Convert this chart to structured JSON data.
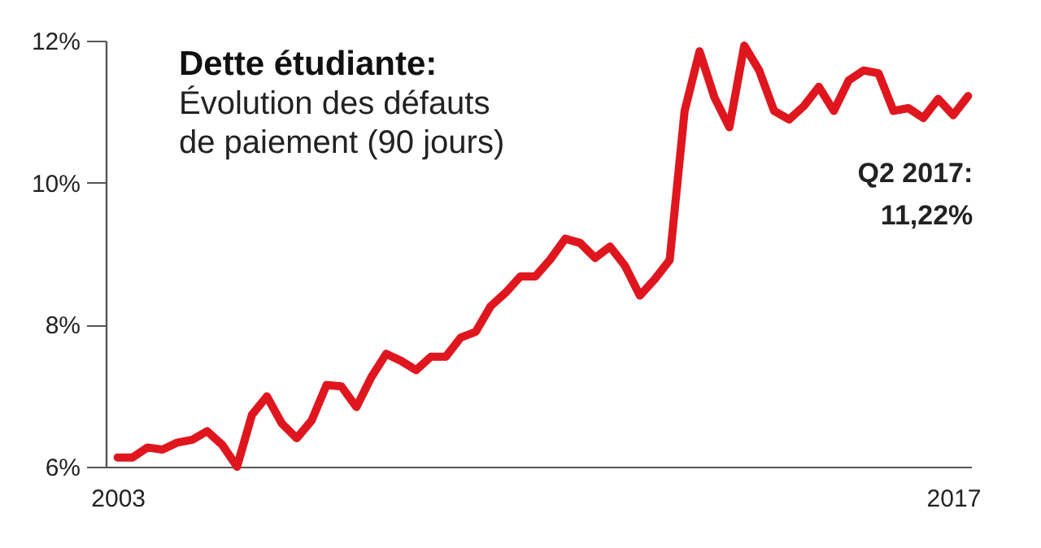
{
  "chart_data": {
    "type": "line",
    "title": "Dette étudiante:",
    "subtitle": "Évolution des défauts de paiement (90 jours)",
    "x": [
      2003,
      2003.25,
      2003.5,
      2003.75,
      2004,
      2004.25,
      2004.5,
      2004.75,
      2005,
      2005.25,
      2005.5,
      2005.75,
      2006,
      2006.25,
      2006.5,
      2006.75,
      2007,
      2007.25,
      2007.5,
      2007.75,
      2008,
      2008.25,
      2008.5,
      2008.75,
      2009,
      2009.25,
      2009.5,
      2009.75,
      2010,
      2010.25,
      2010.5,
      2010.75,
      2011,
      2011.25,
      2011.5,
      2011.75,
      2012,
      2012.25,
      2012.5,
      2012.75,
      2013,
      2013.25,
      2013.5,
      2013.75,
      2014,
      2014.25,
      2014.5,
      2014.75,
      2015,
      2015.25,
      2015.5,
      2015.75,
      2016,
      2016.25,
      2016.5,
      2016.75,
      2017,
      2017.25
    ],
    "series": [
      {
        "color": "#e0161e",
        "values": [
          6.13,
          6.13,
          6.27,
          6.24,
          6.34,
          6.38,
          6.5,
          6.31,
          6.0,
          6.73,
          6.99,
          6.61,
          6.4,
          6.65,
          7.15,
          7.13,
          6.84,
          7.26,
          7.59,
          7.49,
          7.36,
          7.55,
          7.55,
          7.82,
          7.9,
          8.26,
          8.45,
          8.68,
          8.68,
          8.92,
          9.21,
          9.15,
          8.94,
          9.1,
          8.83,
          8.41,
          8.64,
          8.91,
          11.01,
          11.85,
          11.2,
          10.78,
          11.93,
          11.58,
          11.01,
          10.89,
          11.08,
          11.35,
          11.01,
          11.44,
          11.58,
          11.54,
          11.01,
          11.05,
          10.91,
          11.18,
          10.95,
          11.22
        ]
      }
    ],
    "xlim": [
      2002.8,
      2017.3
    ],
    "xticks": [
      {
        "value": 2003,
        "label": "2003"
      },
      {
        "value": 2017,
        "label": "2017"
      }
    ],
    "ylim": [
      6,
      12
    ],
    "yticks": [
      {
        "value": 6,
        "label": "6%"
      },
      {
        "value": 8,
        "label": "8%"
      },
      {
        "value": 10,
        "label": "10%"
      },
      {
        "value": 12,
        "label": "12%"
      }
    ],
    "annotations": [
      {
        "text": "Q2 2017:\n11,22%",
        "x": 2017.25,
        "y": 11.22
      }
    ],
    "grid": false,
    "marker": "none",
    "line_style": "solid"
  }
}
